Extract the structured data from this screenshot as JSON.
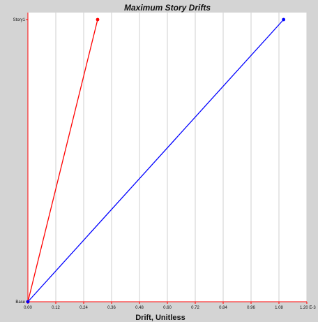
{
  "chart_data": {
    "type": "line",
    "title": "Maximum Story Drifts",
    "xlabel": "Drift, Unitless",
    "ylabel": "",
    "x_unit_suffix": "E-3",
    "xlim": [
      0,
      1.2
    ],
    "x_ticks": [
      "0.00",
      "0.12",
      "0.24",
      "0.36",
      "0.48",
      "0.60",
      "0.72",
      "0.84",
      "0.96",
      "1.08",
      "1.20 E-3"
    ],
    "x_tick_values": [
      0,
      0.12,
      0.24,
      0.36,
      0.48,
      0.6,
      0.72,
      0.84,
      0.96,
      1.08,
      1.2
    ],
    "y_categories": [
      "Base",
      "Story1"
    ],
    "grid": true,
    "series": [
      {
        "color": "#ff0000",
        "points": [
          {
            "x": 0.0,
            "y": "Base"
          },
          {
            "x": 0.3,
            "y": "Story1"
          }
        ]
      },
      {
        "color": "#0000ff",
        "points": [
          {
            "x": 0.0,
            "y": "Base"
          },
          {
            "x": 1.1,
            "y": "Story1"
          }
        ]
      }
    ],
    "axis_color": "#ff0000",
    "grid_color": "#cfcfcf"
  }
}
